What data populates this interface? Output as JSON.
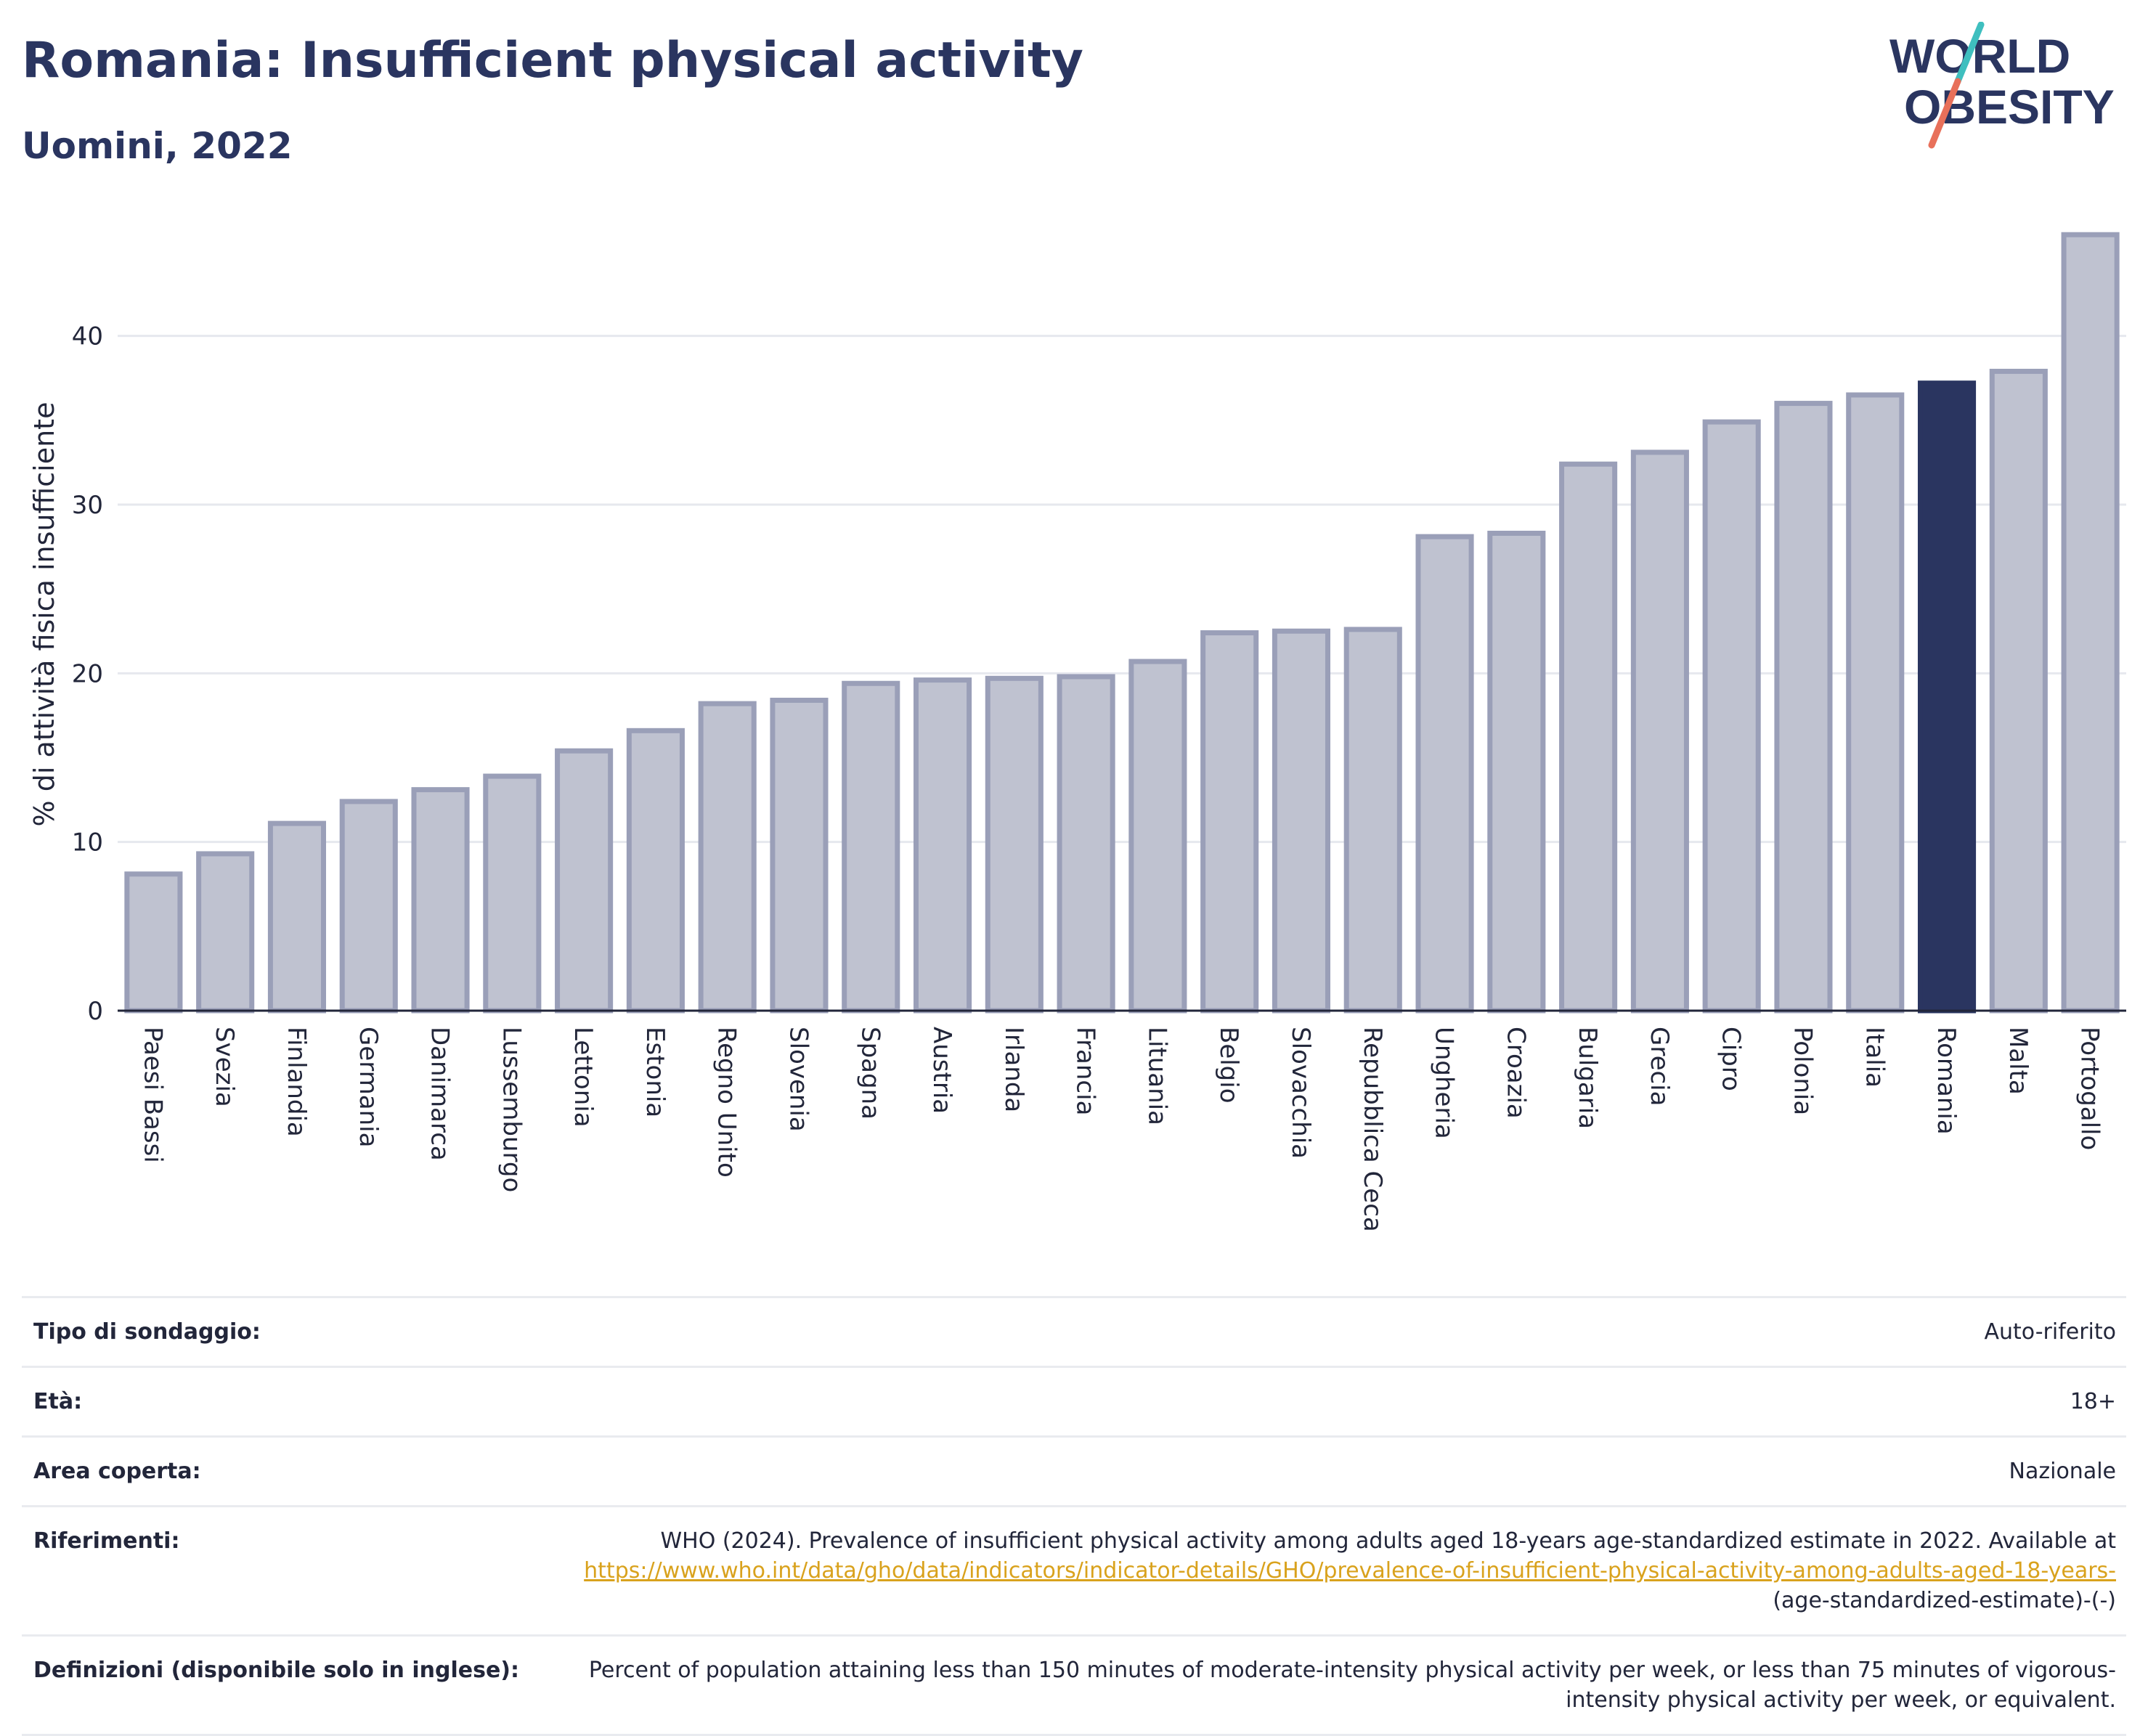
{
  "header": {
    "title": "Romania: Insufficient physical activity",
    "subtitle": "Uomini, 2022"
  },
  "logo": {
    "line1": "WORLD",
    "line2": "OBESITY",
    "text_color": "#2a3560",
    "slash_top_color": "#3fbfbf",
    "slash_bottom_color": "#e8705a"
  },
  "chart_data": {
    "type": "bar",
    "ylabel": "% di attività fisica insufficiente",
    "xlabel": "",
    "ylim": [
      0,
      47
    ],
    "yticks": [
      0,
      10,
      20,
      30,
      40
    ],
    "grid": true,
    "categories": [
      "Paesi Bassi",
      "Svezia",
      "Finlandia",
      "Germania",
      "Danimarca",
      "Lussemburgo",
      "Lettonia",
      "Estonia",
      "Regno Unito",
      "Slovenia",
      "Spagna",
      "Austria",
      "Irlanda",
      "Francia",
      "Lituania",
      "Belgio",
      "Slovacchia",
      "Repubblica Ceca",
      "Ungheria",
      "Croazia",
      "Bulgaria",
      "Grecia",
      "Cipro",
      "Polonia",
      "Italia",
      "Romania",
      "Malta",
      "Portogallo"
    ],
    "values": [
      8.1,
      9.3,
      11.1,
      12.4,
      13.1,
      13.9,
      15.4,
      16.6,
      18.2,
      18.4,
      19.4,
      19.6,
      19.7,
      19.8,
      20.7,
      22.4,
      22.5,
      22.6,
      28.1,
      28.3,
      32.4,
      33.1,
      34.9,
      36.0,
      36.5,
      37.2,
      37.9,
      46.0
    ],
    "highlight": "Romania",
    "bar_color": "#bfc2d0",
    "bar_border_color": "#9a9fb8",
    "highlight_color": "#2a3560"
  },
  "meta": {
    "survey_label": "Tipo di sondaggio:",
    "survey_value": "Auto-riferito",
    "age_label": "Età:",
    "age_value": "18+",
    "area_label": "Area coperta:",
    "area_value": "Nazionale",
    "refs_label": "Riferimenti:",
    "refs_text": "WHO (2024). Prevalence of insufficient physical activity among adults aged 18-years age-standardized estimate in 2022. Available at ",
    "refs_link": "https://www.who.int/data/gho/data/indicators/indicator-details/GHO/prevalence-of-insufficient-physical-activity-among-adults-aged-18-years-",
    "refs_suffix": "(age-standardized-estimate)-(-)",
    "defs_label": "Definizioni (disponibile solo in inglese):",
    "defs_value": "Percent of population attaining less than 150 minutes of moderate-intensity physical activity per week, or less than 75 minutes of vigorous-intensity physical activity per week, or equivalent."
  }
}
